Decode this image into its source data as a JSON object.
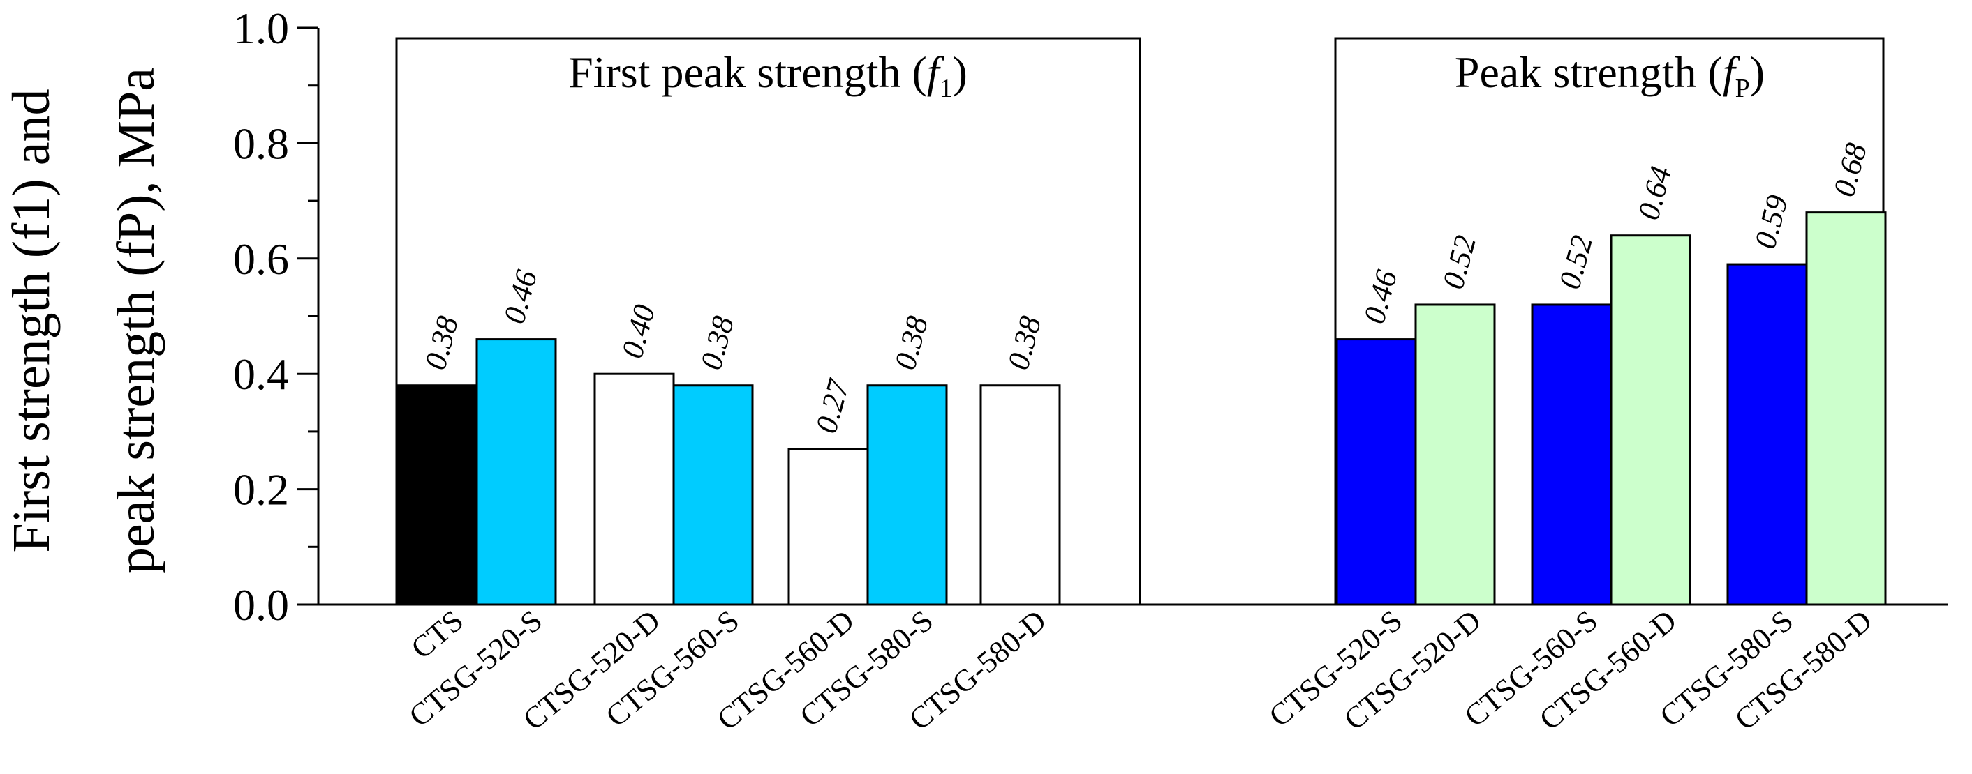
{
  "chart_data": {
    "type": "bar",
    "ylabel_line1": "First strength (f1) and",
    "ylabel_line2": "peak strength (fP), MPa",
    "ylim": [
      0.0,
      1.0
    ],
    "yticks": [
      "0.0",
      "0.2",
      "0.4",
      "0.6",
      "0.8",
      "1.0"
    ],
    "colors": {
      "CTS": "#000000",
      "S_first": "#00ccff",
      "D_first": "#ffffff",
      "S_peak": "#0000ff",
      "D_peak": "#ccffcc"
    },
    "groups": [
      {
        "title": "First peak strength (f1)",
        "title_text": "First peak strength (",
        "title_var": "f",
        "title_sub": "1",
        "title_close": ")",
        "categories": [
          "CTS",
          "CTSG-520-S",
          "CTSG-520-D",
          "CTSG-560-S",
          "CTSG-560-D",
          "CTSG-580-S",
          "CTSG-580-D"
        ],
        "values": [
          0.38,
          0.46,
          0.4,
          0.38,
          0.27,
          0.38,
          0.38
        ],
        "value_labels": [
          "0.38",
          "0.46",
          "0.40",
          "0.38",
          "0.27",
          "0.38",
          "0.38"
        ],
        "color_keys": [
          "CTS",
          "S_first",
          "D_first",
          "S_first",
          "D_first",
          "S_first",
          "D_first"
        ]
      },
      {
        "title": "Peak strength (fP)",
        "title_text": "Peak strength (",
        "title_var": "f",
        "title_sub": "P",
        "title_close": ")",
        "categories": [
          "CTSG-520-S",
          "CTSG-520-D",
          "CTSG-560-S",
          "CTSG-560-D",
          "CTSG-580-S",
          "CTSG-580-D"
        ],
        "values": [
          0.46,
          0.52,
          0.52,
          0.64,
          0.59,
          0.68
        ],
        "value_labels": [
          "0.46",
          "0.52",
          "0.52",
          "0.64",
          "0.59",
          "0.68"
        ],
        "color_keys": [
          "S_peak",
          "D_peak",
          "S_peak",
          "D_peak",
          "S_peak",
          "D_peak"
        ]
      }
    ]
  }
}
